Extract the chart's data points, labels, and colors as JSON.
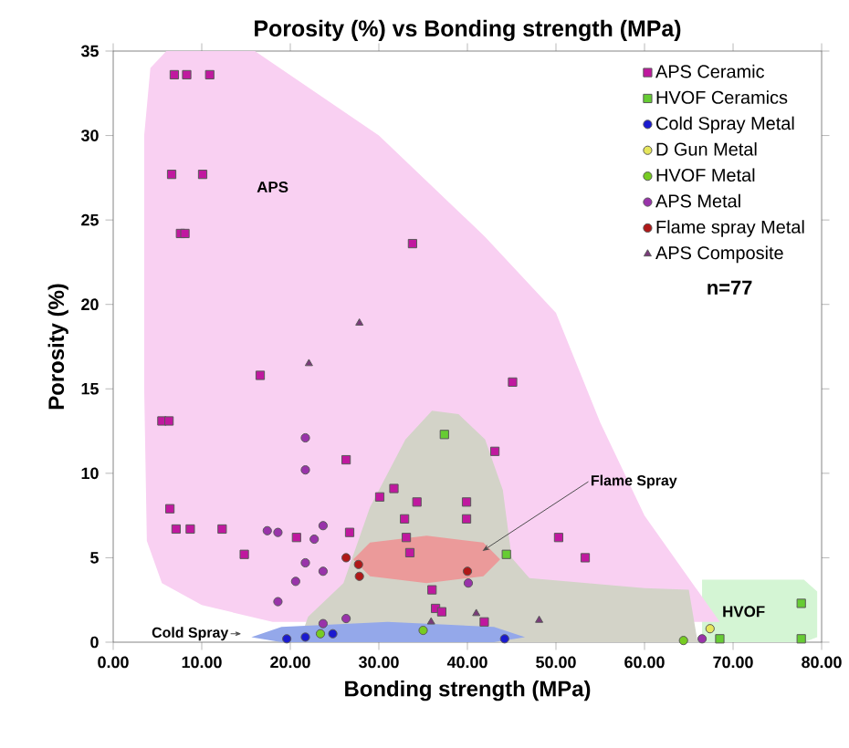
{
  "chart_data": {
    "type": "scatter",
    "title": "Porosity (%) vs Bonding strength (MPa)",
    "xlabel": "Bonding strength (MPa)",
    "ylabel": "Porosity (%)",
    "xlim": [
      0,
      80
    ],
    "ylim": [
      0,
      35
    ],
    "xticks": [
      {
        "value": 0,
        "label": "0.00"
      },
      {
        "value": 10,
        "label": "10.00"
      },
      {
        "value": 20,
        "label": "20.00"
      },
      {
        "value": 30,
        "label": "30.00"
      },
      {
        "value": 40,
        "label": "40.00"
      },
      {
        "value": 50,
        "label": "50.00"
      },
      {
        "value": 60,
        "label": "60.00"
      },
      {
        "value": 70,
        "label": "70.00"
      },
      {
        "value": 80,
        "label": "80.00"
      }
    ],
    "yticks": [
      0,
      5,
      10,
      15,
      20,
      25,
      30,
      35
    ],
    "legend": "top right",
    "grid": false,
    "series": [
      {
        "type": "area",
        "color": "#d4f5d4",
        "x": [
          66.5,
          78,
          79.5,
          79.5,
          78,
          66.5
        ],
        "values": [
          3.7,
          3.7,
          3,
          0.3,
          0,
          0
        ]
      },
      {
        "type": "area",
        "color": "#f9d0f2",
        "x": [
          3.5,
          4.2,
          6,
          16,
          30,
          42,
          50,
          55,
          60,
          68.5,
          18,
          10,
          5.5,
          3.8,
          3.5
        ],
        "values": [
          30,
          34,
          35,
          35,
          30,
          24,
          19.5,
          13,
          7.5,
          1.2,
          1.2,
          2.2,
          3.5,
          6,
          15
        ]
      },
      {
        "type": "area",
        "color": "#d3d3c8",
        "x": [
          21,
          22,
          26,
          29,
          33,
          36,
          39,
          42,
          44,
          45,
          47,
          60,
          65,
          66,
          21
        ],
        "values": [
          0,
          1.5,
          3.5,
          8,
          12,
          13.7,
          13.5,
          12,
          9,
          5,
          3.8,
          3.2,
          3.1,
          0,
          0
        ]
      },
      {
        "type": "area",
        "color": "#eb9a9a",
        "x": [
          27.1,
          29,
          35.4,
          41.8,
          43.7,
          41.8,
          35.4,
          29
        ],
        "values": [
          4.9,
          5.9,
          6.3,
          5.9,
          4.9,
          3.9,
          3.5,
          3.9
        ]
      },
      {
        "type": "area",
        "color": "#94a8ea",
        "x": [
          15.6,
          19,
          31,
          43,
          46.5,
          43,
          19
        ],
        "values": [
          0.3,
          0.9,
          1.2,
          0.9,
          0.3,
          0,
          0
        ]
      },
      {
        "name": "APS Ceramic",
        "color": "#c0189f",
        "marker": "square",
        "x": [
          6.9,
          8.3,
          10.9,
          6.6,
          10.1,
          7.6,
          8.1,
          16.6,
          5.5,
          6.3,
          26.3,
          6.4,
          7.1,
          8.7,
          12.3,
          20.7,
          26.7,
          14.8,
          33.8,
          45.1,
          43.1,
          30.1,
          31.7,
          34.3,
          39.9,
          32.9,
          39.9,
          33.1,
          33.5,
          50.3,
          53.3,
          36.0,
          36.4,
          37.1,
          41.9
        ],
        "values": [
          33.6,
          33.6,
          33.6,
          27.7,
          27.7,
          24.2,
          24.2,
          15.8,
          13.1,
          13.1,
          10.8,
          7.9,
          6.7,
          6.7,
          6.7,
          6.2,
          6.5,
          5.2,
          23.6,
          15.4,
          11.3,
          8.6,
          9.1,
          8.3,
          8.3,
          7.3,
          7.3,
          6.2,
          5.3,
          6.2,
          5.0,
          3.1,
          2.0,
          1.8,
          1.2
        ]
      },
      {
        "name": "HVOF Ceramics",
        "color": "#66cc33",
        "marker": "square",
        "x": [
          37.4,
          44.4,
          77.7,
          77.7,
          68.5
        ],
        "values": [
          12.3,
          5.2,
          2.3,
          0.2,
          0.2
        ]
      },
      {
        "name": "Cold Spray Metal",
        "color": "#1a1ad0",
        "marker": "circle",
        "x": [
          19.6,
          21.7,
          24.8,
          44.2
        ],
        "values": [
          0.2,
          0.3,
          0.5,
          0.2
        ]
      },
      {
        "name": "D Gun Metal",
        "color": "#e6e65c",
        "marker": "circle",
        "x": [
          67.4
        ],
        "values": [
          0.8
        ]
      },
      {
        "name": "HVOF Metal",
        "color": "#77cc22",
        "marker": "circle",
        "x": [
          23.4,
          35.0,
          64.4
        ],
        "values": [
          0.5,
          0.7,
          0.1
        ]
      },
      {
        "name": "APS Metal",
        "color": "#9933aa",
        "marker": "circle",
        "x": [
          21.7,
          21.7,
          17.4,
          18.6,
          22.7,
          23.7,
          21.7,
          23.7,
          20.6,
          18.6,
          23.7,
          26.3,
          40.1,
          66.5
        ],
        "values": [
          12.1,
          10.2,
          6.6,
          6.5,
          6.1,
          6.9,
          4.7,
          4.2,
          3.6,
          2.4,
          1.1,
          1.4,
          3.5,
          0.2
        ]
      },
      {
        "name": "Flame spray Metal",
        "color": "#b01818",
        "marker": "circle",
        "x": [
          26.3,
          27.7,
          27.8,
          40.0
        ],
        "values": [
          5.0,
          4.6,
          3.9,
          4.2
        ]
      },
      {
        "name": "APS Composite",
        "color": "#7a3a7a",
        "marker": "triangle",
        "x": [
          27.8,
          22.1,
          35.9,
          41.0,
          48.1
        ],
        "values": [
          18.9,
          16.5,
          1.2,
          1.7,
          1.3
        ]
      }
    ],
    "annotations": [
      "APS",
      {
        "text": "Flame Spray",
        "x": 41.7,
        "y": 5.4
      },
      {
        "text": "Cold Spray",
        "x": 14.5,
        "y": 0.5
      },
      "HVOF",
      "n=77"
    ]
  }
}
